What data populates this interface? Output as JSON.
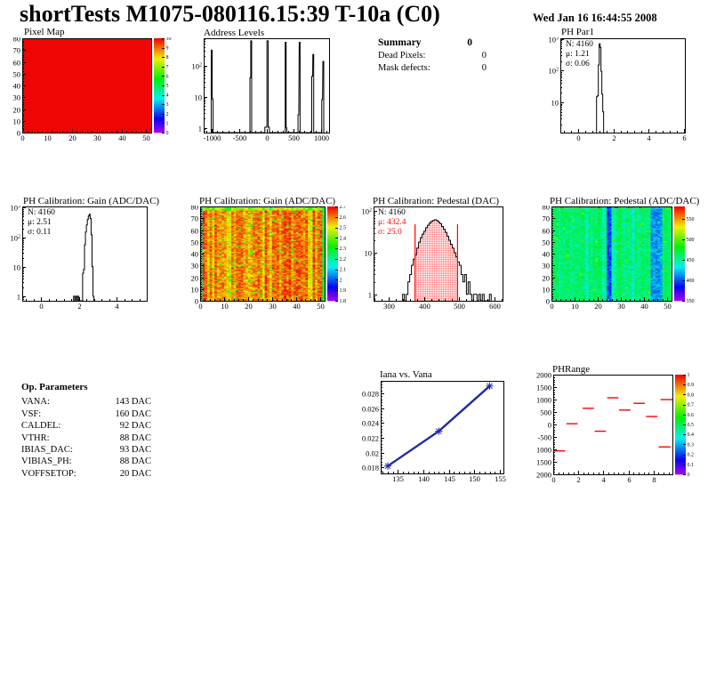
{
  "header": {
    "title": "shortTests M1075-080116.15:39 T-10a (C0)",
    "date": "Wed Jan 16 16:44:55 2008"
  },
  "summary": {
    "title": "Summary",
    "title_value": "0",
    "rows": [
      {
        "label": "Dead Pixels:",
        "value": "0"
      },
      {
        "label": "Mask defects:",
        "value": "0"
      }
    ]
  },
  "op_parameters": {
    "title": "Op. Parameters",
    "rows": [
      {
        "label": "VANA:",
        "value": "143 DAC"
      },
      {
        "label": "VSF:",
        "value": "160 DAC"
      },
      {
        "label": "CALDEL:",
        "value": "92 DAC"
      },
      {
        "label": "VTHR:",
        "value": "88 DAC"
      },
      {
        "label": "IBIAS_DAC:",
        "value": "93 DAC"
      },
      {
        "label": "VIBIAS_PH:",
        "value": "88 DAC"
      },
      {
        "label": "VOFFSETOP:",
        "value": "20 DAC"
      }
    ]
  },
  "colors": {
    "accent_red": "#ff0000",
    "marker_blue": "#2228a8",
    "frame_black": "#000000"
  },
  "chart_data": [
    {
      "id": "pixel_map",
      "type": "heatmap",
      "title": "Pixel Map",
      "xlim": [
        0,
        52
      ],
      "xticks": [
        0,
        10,
        20,
        30,
        40,
        50
      ],
      "xminor": 2,
      "ylim": [
        0,
        80
      ],
      "yticks": [
        0,
        10,
        20,
        30,
        40,
        50,
        60,
        70,
        80
      ],
      "yminor": 2,
      "zlim": [
        0,
        10
      ],
      "uniform": 10,
      "ncols": 52,
      "nrows": 80,
      "cb_ticks": [
        [
          0,
          "0"
        ],
        [
          1,
          "1"
        ],
        [
          2,
          "2"
        ],
        [
          3,
          "3"
        ],
        [
          4,
          "4"
        ],
        [
          5,
          "5"
        ],
        [
          6,
          "6"
        ],
        [
          7,
          "7"
        ],
        [
          8,
          "8"
        ],
        [
          9,
          "9"
        ],
        [
          10,
          "10"
        ]
      ]
    },
    {
      "id": "address_levels",
      "type": "loghist",
      "title": "Address Levels",
      "xlim": [
        -1150,
        1150
      ],
      "xticks": [
        -1000,
        -500,
        0,
        500,
        1000
      ],
      "xminor": 100,
      "ylim": [
        0.7,
        750
      ],
      "yticks_log": true,
      "bars": [
        [
          -1012,
          -995,
          310
        ],
        [
          -993,
          -978,
          8.5
        ],
        [
          -302,
          -287,
          40
        ],
        [
          -287,
          -270,
          620
        ],
        [
          -28,
          10,
          1.05
        ],
        [
          10,
          32,
          620
        ],
        [
          32,
          55,
          1.05
        ],
        [
          345,
          362,
          560
        ],
        [
          362,
          374,
          1.0
        ],
        [
          580,
          594,
          2.6
        ],
        [
          602,
          618,
          560
        ],
        [
          832,
          848,
          45
        ],
        [
          852,
          868,
          225
        ],
        [
          1016,
          1030,
          8
        ],
        [
          1036,
          1052,
          135
        ]
      ]
    },
    {
      "id": "ph_par1",
      "type": "loghist",
      "title": "PH Par1",
      "xlim": [
        -1,
        6.05
      ],
      "xticks": [
        0,
        2,
        4,
        6
      ],
      "xminor": 0.4,
      "ylim": [
        1.1,
        1050
      ],
      "yticks_log": true,
      "bins": {
        "x0": 1.05,
        "bw": 0.05,
        "heights": [
          15,
          16,
          150,
          700,
          540,
          95,
          18,
          5
        ]
      },
      "stats": {
        "n": "N: 4160",
        "mu": "μ: 1.21",
        "sigma": "σ: 0.06"
      }
    },
    {
      "id": "gain_hist",
      "type": "loghist",
      "title": "PH Calibration: Gain (ADC/DAC)",
      "xlim": [
        -1,
        5.6
      ],
      "xticks": [
        0,
        2,
        4
      ],
      "xminor": 0.4,
      "ylim": [
        0.7,
        1100
      ],
      "yticks_log": true,
      "bars": [
        [
          1.72,
          1.79,
          1
        ],
        [
          1.83,
          1.9,
          1
        ],
        [
          1.93,
          2.0,
          1
        ],
        [
          2.2,
          2.25,
          6
        ],
        [
          2.25,
          2.3,
          8
        ],
        [
          2.3,
          2.35,
          55
        ],
        [
          2.35,
          2.4,
          150
        ],
        [
          2.4,
          2.45,
          260
        ],
        [
          2.45,
          2.5,
          400
        ],
        [
          2.5,
          2.55,
          520
        ],
        [
          2.55,
          2.6,
          600
        ],
        [
          2.6,
          2.65,
          430
        ],
        [
          2.65,
          2.7,
          120
        ],
        [
          2.7,
          2.75,
          10
        ],
        [
          2.75,
          2.8,
          1
        ]
      ],
      "stats": {
        "n": "N: 4160",
        "mu": "μ: 2.51",
        "sigma": "σ: 0.11"
      }
    },
    {
      "id": "gain_map",
      "type": "heatmap",
      "title": "PH Calibration: Gain (ADC/DAC)",
      "xlim": [
        0,
        52
      ],
      "xticks": [
        0,
        10,
        20,
        30,
        40,
        50
      ],
      "xminor": 2,
      "ylim": [
        0,
        80
      ],
      "yticks": [
        0,
        10,
        20,
        30,
        40,
        50,
        60,
        70,
        80
      ],
      "yminor": 2,
      "zlim": [
        1.8,
        2.7
      ],
      "ncols": 52,
      "nrows": 80,
      "texture": {
        "seed": 7,
        "base": 2.605,
        "colNoise": 0.09,
        "colDipP": 0.3,
        "colDip": 0.06,
        "cellNoise": 0.13,
        "topRows": [
          3,
          -0.14
        ],
        "edgeCols": -0.27,
        "speckleP": 0.04,
        "speckle": -0.22
      },
      "cb_ticks": [
        [
          1.8,
          "1.8"
        ],
        [
          1.9,
          "1.9"
        ],
        [
          2,
          "2"
        ],
        [
          2.1,
          "2.1"
        ],
        [
          2.2,
          "2.2"
        ],
        [
          2.3,
          "2.3"
        ],
        [
          2.4,
          "2.4"
        ],
        [
          2.5,
          "2.5"
        ],
        [
          2.6,
          "2.6"
        ],
        [
          2.7,
          "2.7"
        ]
      ]
    },
    {
      "id": "ped_hist",
      "type": "loghist",
      "title": "PH Calibration: Pedestal (DAC)",
      "xlim": [
        258,
        622
      ],
      "xticks": [
        300,
        400,
        500,
        600
      ],
      "xminor": 20,
      "ylim": [
        0.7,
        130
      ],
      "yticks_log": true,
      "bins": {
        "x0": 340,
        "bw": 5,
        "heights": [
          1,
          0,
          1,
          2,
          3,
          5,
          7,
          9,
          13,
          18,
          23,
          28,
          33,
          40,
          46,
          52,
          57,
          60,
          62,
          60,
          55,
          50,
          43,
          37,
          31,
          25,
          20,
          16,
          13,
          10,
          8,
          6,
          5,
          3,
          2,
          3,
          1,
          2,
          1,
          0,
          1,
          1,
          0,
          1,
          0,
          1,
          0,
          0,
          0,
          1
        ]
      },
      "red_lines": [
        375,
        495
      ],
      "stats": {
        "n": "N: 4160",
        "mu": "μ: 432.4",
        "sigma": "σ: 25.0"
      }
    },
    {
      "id": "ped_map",
      "type": "heatmap",
      "title": "PH Calibration: Pedestal (ADC/DAC)",
      "xlim": [
        0,
        52
      ],
      "xticks": [
        0,
        10,
        20,
        30,
        40,
        50
      ],
      "xminor": 2,
      "ylim": [
        0,
        80
      ],
      "yticks": [
        0,
        10,
        20,
        30,
        40,
        50,
        60,
        70,
        80
      ],
      "yminor": 2,
      "zlim": [
        350,
        580
      ],
      "ncols": 52,
      "nrows": 80,
      "texture": {
        "seed": 11,
        "base": 459,
        "colNoise": 14,
        "colDipP": 0.12,
        "colDip": 16,
        "cellNoise": 26,
        "stripes": [
          [
            24,
            25,
            -62
          ],
          [
            43,
            47,
            -46
          ]
        ],
        "hotTopP": 0.35,
        "hotVal": 545,
        "speckleP": 0.02,
        "speckle": 40
      },
      "cb_ticks": [
        [
          350,
          "350"
        ],
        [
          400,
          "400"
        ],
        [
          450,
          "450"
        ],
        [
          500,
          "500"
        ],
        [
          550,
          "550"
        ]
      ]
    },
    {
      "id": "iana_vana",
      "type": "line",
      "title": "Iana vs. Vana",
      "x": [
        133,
        143,
        153
      ],
      "y": [
        0.0182,
        0.0229,
        0.029
      ],
      "xlim": [
        131.6,
        155.7
      ],
      "xticks": [
        135,
        140,
        145,
        150,
        155
      ],
      "xminor": 1,
      "ylim": [
        0.0172,
        0.0297
      ],
      "yticks": [
        [
          0.018,
          "0.018"
        ],
        [
          0.02,
          "0.02"
        ],
        [
          0.022,
          "0.022"
        ],
        [
          0.024,
          "0.024"
        ],
        [
          0.026,
          "0.026"
        ],
        [
          0.028,
          "0.028"
        ]
      ],
      "yminor": 0.0004,
      "marker": "star"
    },
    {
      "id": "ph_range",
      "type": "segments",
      "title": "PHRange",
      "xlim": [
        0,
        9.5
      ],
      "xticks": [
        0,
        2,
        4,
        6,
        8
      ],
      "xminor": 0.4,
      "ylim": [
        -2000,
        2000
      ],
      "yticks": [
        [
          2000,
          "2000"
        ],
        [
          1500,
          "1500"
        ],
        [
          1000,
          "1000"
        ],
        [
          500,
          "500"
        ],
        [
          0,
          "0"
        ],
        [
          -500,
          "-500"
        ],
        [
          -1000,
          "1000"
        ],
        [
          -1500,
          "1500"
        ],
        [
          -2000,
          "2000"
        ]
      ],
      "yminor": 100,
      "zlim": [
        0,
        1
      ],
      "cb_ticks": [
        [
          0,
          "0"
        ],
        [
          0.1,
          "0.1"
        ],
        [
          0.2,
          "0.2"
        ],
        [
          0.3,
          "0.3"
        ],
        [
          0.4,
          "0.4"
        ],
        [
          0.5,
          "0.5"
        ],
        [
          0.6,
          "0.6"
        ],
        [
          0.7,
          "0.7"
        ],
        [
          0.8,
          "0.8"
        ],
        [
          0.9,
          "0.9"
        ],
        [
          1,
          "1"
        ]
      ],
      "segments": [
        [
          0.05,
          0.95,
          -1060
        ],
        [
          1.05,
          1.95,
          30
        ],
        [
          2.35,
          3.25,
          650
        ],
        [
          3.3,
          4.2,
          -270
        ],
        [
          4.3,
          5.2,
          1070
        ],
        [
          5.25,
          6.15,
          580
        ],
        [
          6.4,
          7.3,
          850
        ],
        [
          7.4,
          8.3,
          320
        ],
        [
          8.55,
          9.5,
          1000
        ],
        [
          8.4,
          9.35,
          -900
        ]
      ]
    }
  ]
}
